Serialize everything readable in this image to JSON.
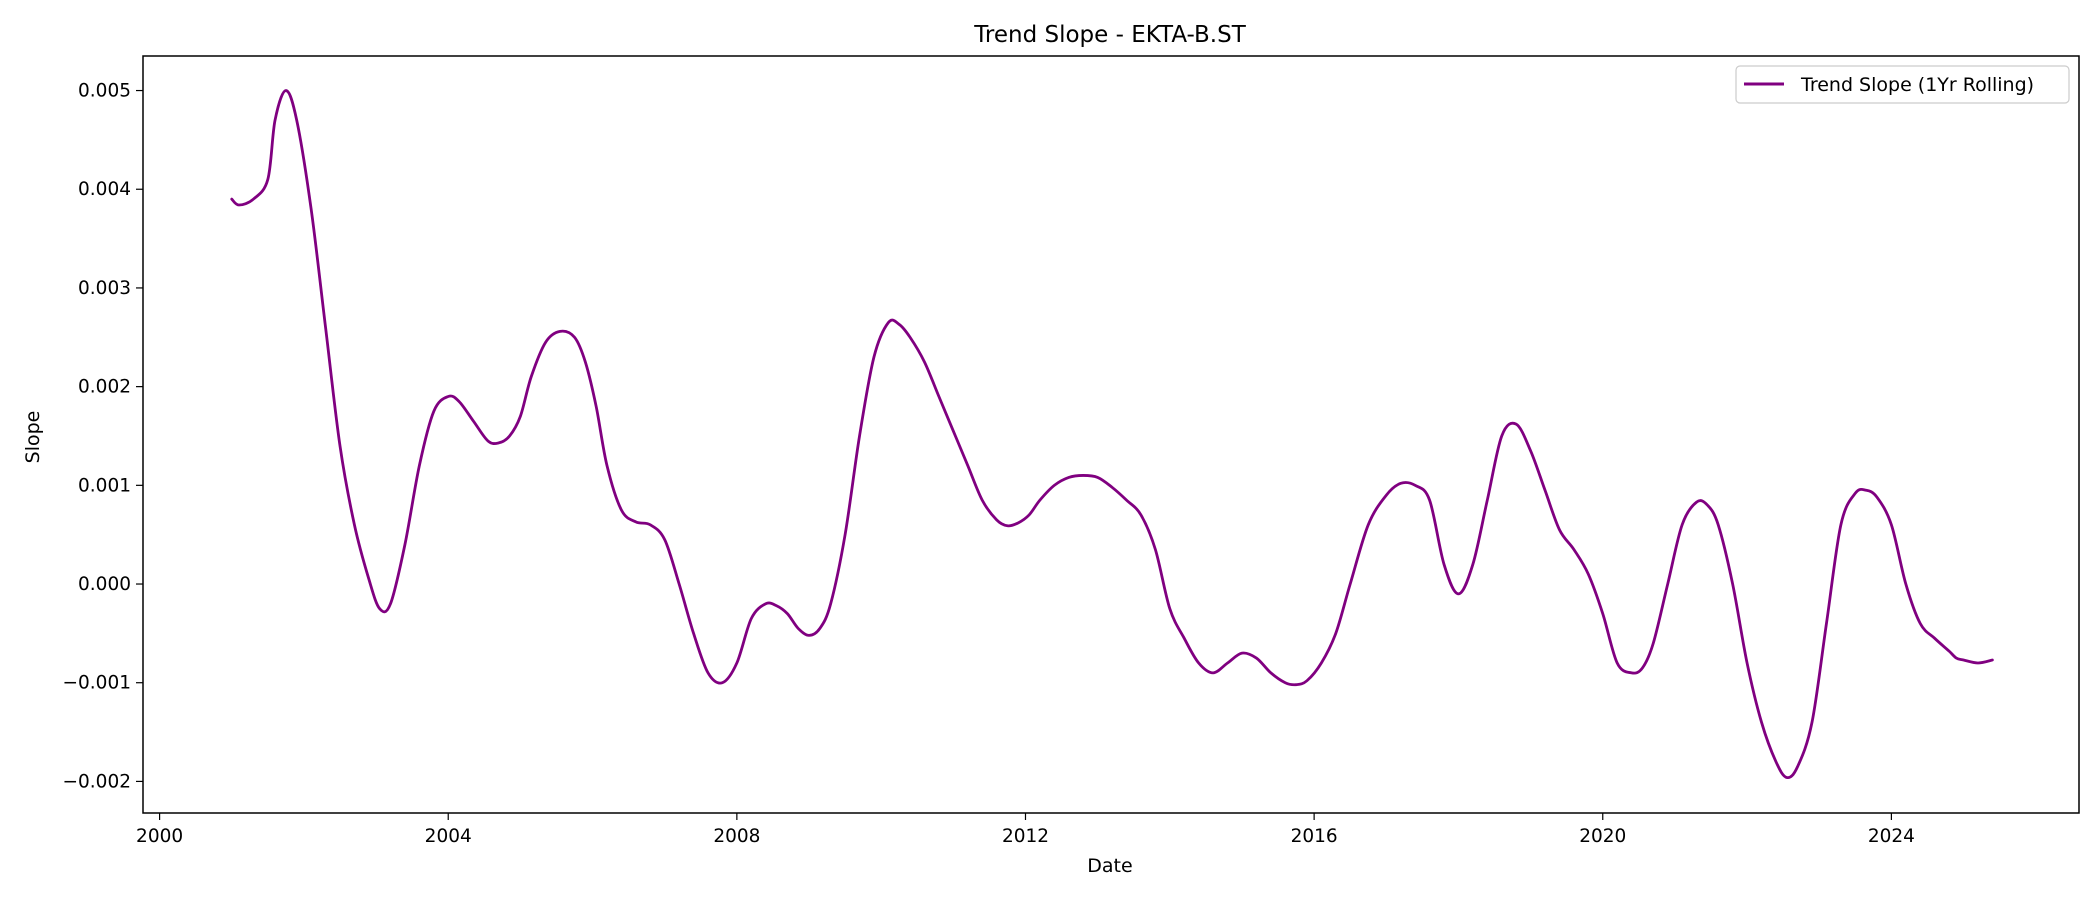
{
  "chart_data": {
    "type": "line",
    "title": "Trend Slope - EKTA-B.ST",
    "xlabel": "Date",
    "ylabel": "Slope",
    "xlim": [
      1999.77,
      2026.6
    ],
    "ylim": [
      -0.00232,
      0.00535
    ],
    "x_ticks": [
      2000,
      2004,
      2008,
      2012,
      2016,
      2020,
      2024
    ],
    "x_tick_labels": [
      "2000",
      "2004",
      "2008",
      "2012",
      "2016",
      "2020",
      "2024"
    ],
    "y_ticks": [
      -0.002,
      -0.001,
      0.0,
      0.001,
      0.002,
      0.003,
      0.004,
      0.005
    ],
    "y_tick_labels": [
      "−0.002",
      "−0.001",
      "0.000",
      "0.001",
      "0.002",
      "0.003",
      "0.004",
      "0.005"
    ],
    "grid": false,
    "legend_position": "top-right",
    "series": [
      {
        "name": "Trend Slope (1Yr Rolling)",
        "color": "#800080",
        "x": [
          2001.0,
          2001.1,
          2001.3,
          2001.5,
          2001.6,
          2001.75,
          2001.9,
          2002.1,
          2002.3,
          2002.5,
          2002.7,
          2002.9,
          2003.05,
          2003.2,
          2003.4,
          2003.6,
          2003.8,
          2004.0,
          2004.15,
          2004.35,
          2004.55,
          2004.7,
          2004.85,
          2005.0,
          2005.15,
          2005.35,
          2005.55,
          2005.75,
          2005.9,
          2006.05,
          2006.2,
          2006.4,
          2006.6,
          2006.8,
          2007.0,
          2007.2,
          2007.4,
          2007.6,
          2007.8,
          2008.0,
          2008.2,
          2008.4,
          2008.55,
          2008.7,
          2008.85,
          2009.0,
          2009.15,
          2009.3,
          2009.5,
          2009.7,
          2009.9,
          2010.1,
          2010.25,
          2010.4,
          2010.6,
          2010.8,
          2011.0,
          2011.2,
          2011.4,
          2011.6,
          2011.75,
          2011.9,
          2012.05,
          2012.2,
          2012.4,
          2012.6,
          2012.8,
          2013.0,
          2013.2,
          2013.4,
          2013.6,
          2013.8,
          2014.0,
          2014.2,
          2014.4,
          2014.6,
          2014.8,
          2015.0,
          2015.2,
          2015.4,
          2015.6,
          2015.75,
          2015.9,
          2016.1,
          2016.3,
          2016.5,
          2016.75,
          2017.0,
          2017.2,
          2017.4,
          2017.6,
          2017.8,
          2018.0,
          2018.2,
          2018.4,
          2018.6,
          2018.8,
          2019.0,
          2019.2,
          2019.4,
          2019.6,
          2019.8,
          2020.0,
          2020.2,
          2020.4,
          2020.55,
          2020.7,
          2020.9,
          2021.1,
          2021.3,
          2021.45,
          2021.6,
          2021.8,
          2022.0,
          2022.2,
          2022.4,
          2022.55,
          2022.7,
          2022.9,
          2023.1,
          2023.3,
          2023.5,
          2023.65,
          2023.8,
          2024.0,
          2024.2,
          2024.4,
          2024.6,
          2024.8,
          2024.9,
          2025.0,
          2025.2,
          2025.4
        ],
        "y": [
          0.0039,
          0.00384,
          0.0039,
          0.0041,
          0.0047,
          0.005,
          0.0047,
          0.0038,
          0.0026,
          0.0014,
          0.0006,
          5e-05,
          -0.00025,
          -0.0002,
          0.0004,
          0.0012,
          0.00175,
          0.0019,
          0.00185,
          0.00165,
          0.00145,
          0.00143,
          0.0015,
          0.0017,
          0.0021,
          0.00245,
          0.00256,
          0.0025,
          0.00225,
          0.0018,
          0.0012,
          0.00075,
          0.00063,
          0.0006,
          0.00045,
          0.0,
          -0.0005,
          -0.0009,
          -0.001,
          -0.0008,
          -0.00035,
          -0.0002,
          -0.00022,
          -0.0003,
          -0.00045,
          -0.00052,
          -0.00045,
          -0.0002,
          0.0005,
          0.0015,
          0.0023,
          0.00265,
          0.00263,
          0.0025,
          0.00225,
          0.0019,
          0.00155,
          0.0012,
          0.00085,
          0.00065,
          0.00059,
          0.00062,
          0.0007,
          0.00085,
          0.001,
          0.00108,
          0.0011,
          0.00108,
          0.00098,
          0.00085,
          0.0007,
          0.00035,
          -0.00025,
          -0.00055,
          -0.0008,
          -0.0009,
          -0.0008,
          -0.0007,
          -0.00075,
          -0.0009,
          -0.001,
          -0.00102,
          -0.00098,
          -0.0008,
          -0.0005,
          0.0,
          0.0006,
          0.0009,
          0.00102,
          0.001,
          0.00085,
          0.0002,
          -0.0001,
          0.0002,
          0.00085,
          0.0015,
          0.00162,
          0.00135,
          0.00095,
          0.00055,
          0.00035,
          0.0001,
          -0.0003,
          -0.0008,
          -0.0009,
          -0.00085,
          -0.0006,
          0.0,
          0.0006,
          0.00083,
          0.0008,
          0.0006,
          0.0,
          -0.0008,
          -0.0014,
          -0.0018,
          -0.00196,
          -0.00185,
          -0.0014,
          -0.0004,
          0.0006,
          0.00092,
          0.00095,
          0.00088,
          0.0006,
          0.0,
          -0.0004,
          -0.00055,
          -0.00068,
          -0.00075,
          -0.00077,
          -0.0008,
          -0.00077
        ]
      }
    ]
  }
}
